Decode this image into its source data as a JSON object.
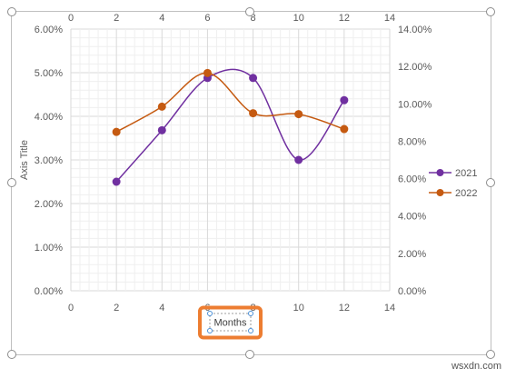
{
  "chart_data": {
    "type": "scatter",
    "subtype": "smooth-lines-with-markers",
    "x_axis_bottom": {
      "label": "Months",
      "range": [
        0,
        14
      ],
      "ticks": [
        "0",
        "2",
        "4",
        "6",
        "8",
        "10",
        "12",
        "14"
      ]
    },
    "x_axis_top": {
      "range": [
        0,
        14
      ],
      "ticks": [
        "0",
        "2",
        "4",
        "6",
        "8",
        "10",
        "12",
        "14"
      ]
    },
    "y_axis_left": {
      "label": "Axis Title",
      "range": [
        0,
        0.06
      ],
      "ticks": [
        "0.00%",
        "1.00%",
        "2.00%",
        "3.00%",
        "4.00%",
        "5.00%",
        "6.00%"
      ]
    },
    "y_axis_right": {
      "range": [
        0,
        0.14
      ],
      "ticks": [
        "0.00%",
        "2.00%",
        "4.00%",
        "6.00%",
        "8.00%",
        "10.00%",
        "12.00%",
        "14.00%"
      ]
    },
    "gridlines": true,
    "legend_position": "right",
    "series": [
      {
        "name": "2021",
        "axis": "left",
        "color": "#7030A0",
        "x": [
          2,
          4,
          6,
          8,
          10,
          12
        ],
        "y": [
          0.025,
          0.0368,
          0.0488,
          0.0488,
          0.03,
          0.0437
        ]
      },
      {
        "name": "2022",
        "axis": "right",
        "color": "#C55A11",
        "x": [
          2,
          4,
          6,
          8,
          10,
          12
        ],
        "y": [
          0.085,
          0.0985,
          0.1165,
          0.095,
          0.0945,
          0.0865
        ]
      }
    ]
  },
  "selection": {
    "highlight_color": "#ED7D31",
    "handle_color": "#4A8FD6"
  },
  "watermark": "wsxdn.com"
}
